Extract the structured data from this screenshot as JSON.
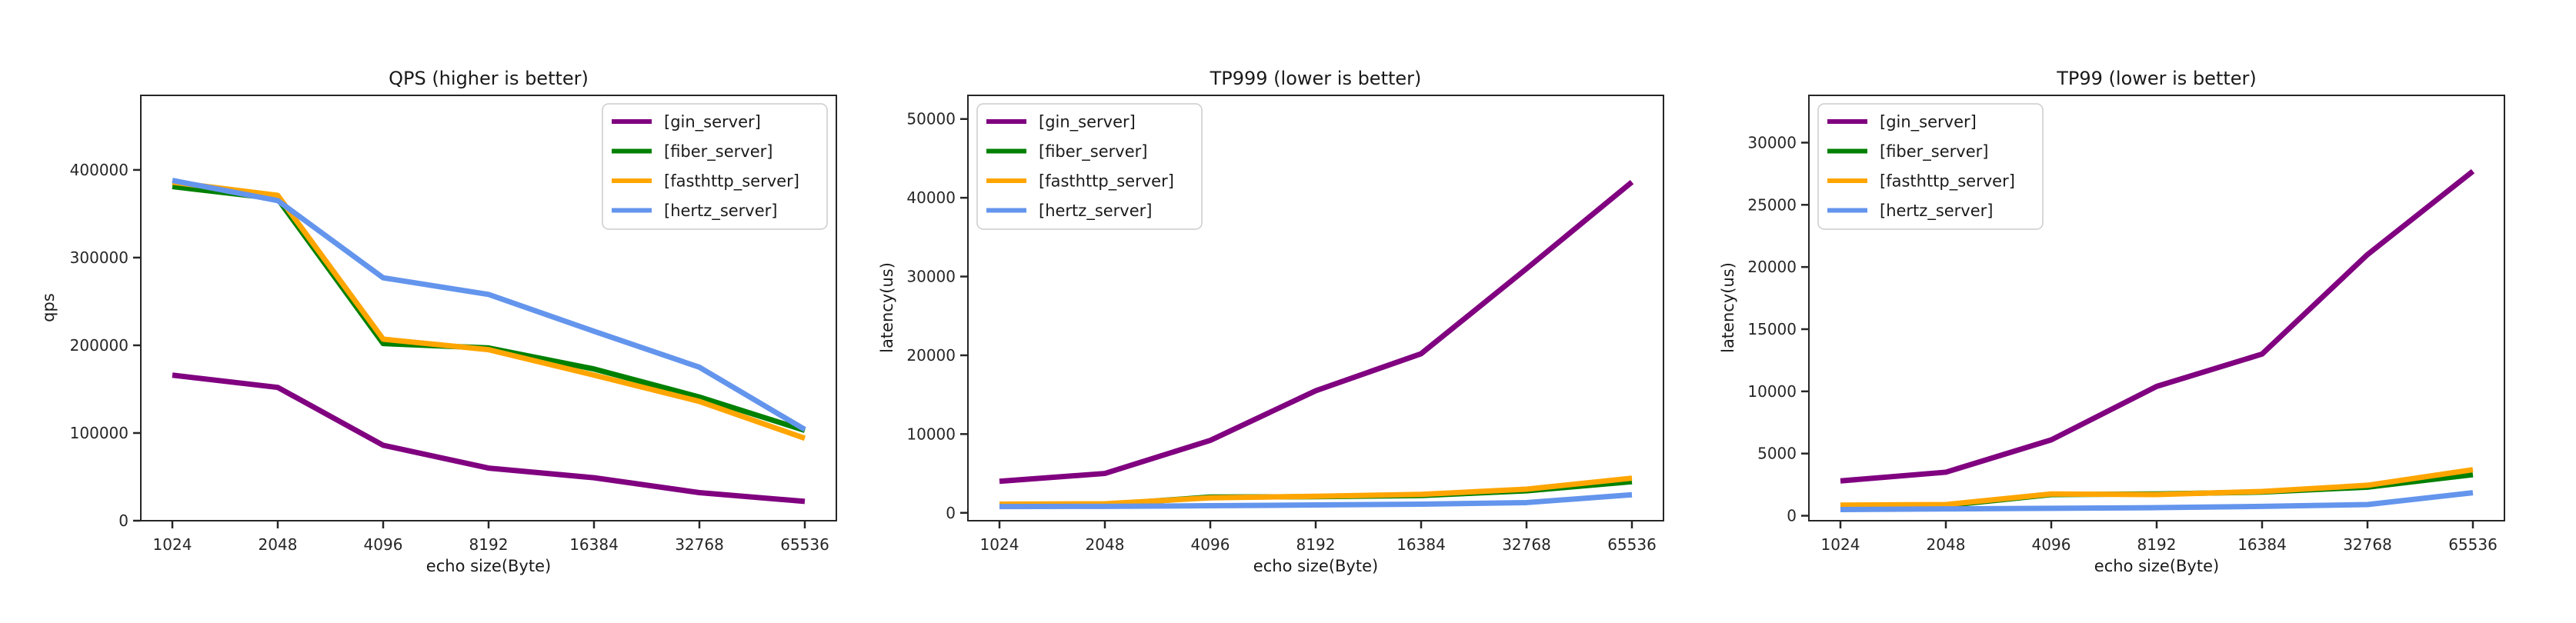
{
  "figure": {
    "background": "#ffffff",
    "text_color": "#1a1a1a",
    "spine_color": "#262626",
    "legend_border_color": "#cccccc"
  },
  "chart_data": [
    {
      "type": "line",
      "title": "QPS (higher is better)",
      "xlabel": "echo size(Byte)",
      "ylabel": "qps",
      "categories": [
        "1024",
        "2048",
        "4096",
        "8192",
        "16384",
        "32768",
        "65536"
      ],
      "yticks": [
        0,
        100000,
        200000,
        300000,
        400000
      ],
      "ylim": [
        0,
        485000
      ],
      "grid": false,
      "legend_position": "upper-right",
      "series": [
        {
          "name": "[gin_server]",
          "color": "#800080",
          "values": [
            166000,
            152000,
            86000,
            60000,
            49000,
            32000,
            22000
          ]
        },
        {
          "name": "[fiber_server]",
          "color": "#008000",
          "values": [
            381000,
            367000,
            202000,
            197000,
            173000,
            141000,
            103000
          ]
        },
        {
          "name": "[fasthttp_server]",
          "color": "#FFA500",
          "values": [
            386000,
            371000,
            207000,
            195000,
            166000,
            136000,
            94000
          ]
        },
        {
          "name": "[hertz_server]",
          "color": "#6495ED",
          "values": [
            388000,
            365000,
            277000,
            258000,
            216000,
            175000,
            104000
          ]
        }
      ]
    },
    {
      "type": "line",
      "title": "TP999 (lower is better)",
      "xlabel": "echo size(Byte)",
      "ylabel": "latency(us)",
      "categories": [
        "1024",
        "2048",
        "4096",
        "8192",
        "16384",
        "32768",
        "65536"
      ],
      "yticks": [
        0,
        10000,
        20000,
        30000,
        40000,
        50000
      ],
      "ylim": [
        -1000,
        53000
      ],
      "grid": false,
      "legend_position": "upper-left",
      "series": [
        {
          "name": "[gin_server]",
          "color": "#800080",
          "values": [
            4000,
            5000,
            9200,
            15500,
            20200,
            31000,
            42000
          ]
        },
        {
          "name": "[fiber_server]",
          "color": "#008000",
          "values": [
            1000,
            1050,
            2000,
            2050,
            2200,
            2800,
            3950
          ]
        },
        {
          "name": "[fasthttp_server]",
          "color": "#FFA500",
          "values": [
            1100,
            1150,
            1900,
            2100,
            2350,
            3000,
            4400
          ]
        },
        {
          "name": "[hertz_server]",
          "color": "#6495ED",
          "values": [
            800,
            820,
            900,
            1000,
            1100,
            1300,
            2300
          ]
        }
      ]
    },
    {
      "type": "line",
      "title": "TP99 (lower is better)",
      "xlabel": "echo size(Byte)",
      "ylabel": "latency(us)",
      "categories": [
        "1024",
        "2048",
        "4096",
        "8192",
        "16384",
        "32768",
        "65536"
      ],
      "yticks": [
        0,
        5000,
        10000,
        15000,
        20000,
        25000,
        30000
      ],
      "ylim": [
        -400,
        33800
      ],
      "grid": false,
      "legend_position": "upper-left",
      "series": [
        {
          "name": "[gin_server]",
          "color": "#800080",
          "values": [
            2800,
            3500,
            6100,
            10400,
            13000,
            21000,
            27700
          ]
        },
        {
          "name": "[fiber_server]",
          "color": "#008000",
          "values": [
            800,
            820,
            1700,
            1750,
            1900,
            2300,
            3300
          ]
        },
        {
          "name": "[fasthttp_server]",
          "color": "#FFA500",
          "values": [
            850,
            900,
            1750,
            1700,
            1950,
            2450,
            3700
          ]
        },
        {
          "name": "[hertz_server]",
          "color": "#6495ED",
          "values": [
            500,
            550,
            600,
            650,
            750,
            900,
            1850
          ]
        }
      ]
    }
  ]
}
